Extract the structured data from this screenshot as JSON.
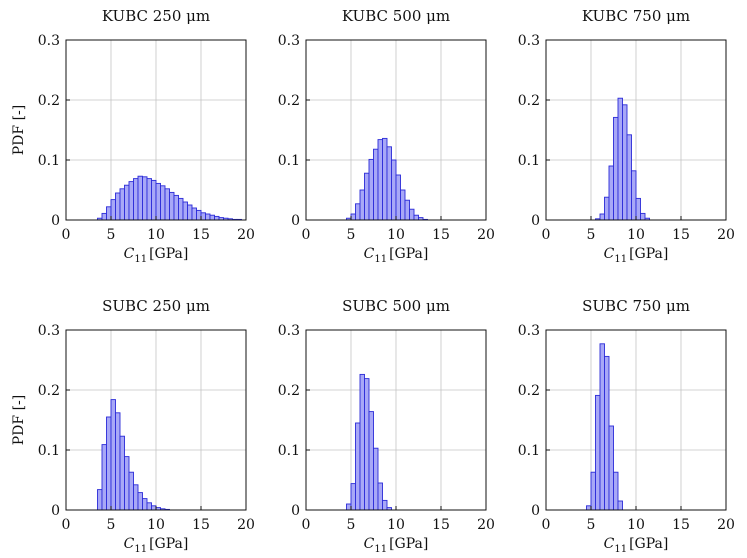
{
  "ylabel": "PDF [-]",
  "xlabel_main": "C",
  "xlabel_sub": "11",
  "xlabel_unit": "[GPa]",
  "chart_data": [
    {
      "type": "bar",
      "title": "KUBC 250 μm",
      "xlim": [
        0,
        20
      ],
      "ylim": [
        0,
        0.3
      ],
      "grid": true,
      "bin_width": 0.5,
      "x_ticks": [
        0,
        5,
        10,
        15,
        20
      ],
      "y_ticks": [
        0,
        0.1,
        0.2,
        0.3
      ],
      "x_tick_labels": [
        "0",
        "5",
        "10",
        "15",
        "20"
      ],
      "y_tick_labels": [
        "0",
        "0.1",
        "0.2",
        "0.3"
      ],
      "bins_start": [
        3.5,
        4,
        4.5,
        5,
        5.5,
        6,
        6.5,
        7,
        7.5,
        8,
        8.5,
        9,
        9.5,
        10,
        10.5,
        11,
        11.5,
        12,
        12.5,
        13,
        13.5,
        14,
        14.5,
        15,
        15.5,
        16,
        16.5,
        17,
        17.5,
        18,
        18.5,
        19
      ],
      "values": [
        0.003,
        0.011,
        0.022,
        0.034,
        0.045,
        0.052,
        0.058,
        0.064,
        0.069,
        0.073,
        0.072,
        0.069,
        0.066,
        0.061,
        0.057,
        0.052,
        0.046,
        0.041,
        0.036,
        0.03,
        0.025,
        0.02,
        0.016,
        0.012,
        0.01,
        0.008,
        0.006,
        0.004,
        0.003,
        0.002,
        0.001,
        0.001
      ]
    },
    {
      "type": "bar",
      "title": "KUBC 500 μm",
      "xlim": [
        0,
        20
      ],
      "ylim": [
        0,
        0.3
      ],
      "grid": true,
      "bin_width": 0.5,
      "x_ticks": [
        0,
        5,
        10,
        15,
        20
      ],
      "y_ticks": [
        0,
        0.1,
        0.2,
        0.3
      ],
      "x_tick_labels": [
        "0",
        "5",
        "10",
        "15",
        "20"
      ],
      "y_tick_labels": [
        "0",
        "0.1",
        "0.2",
        "0.3"
      ],
      "bins_start": [
        4.5,
        5,
        5.5,
        6,
        6.5,
        7,
        7.5,
        8,
        8.5,
        9,
        9.5,
        10,
        10.5,
        11,
        11.5,
        12,
        12.5,
        13
      ],
      "values": [
        0.003,
        0.01,
        0.027,
        0.05,
        0.078,
        0.101,
        0.118,
        0.134,
        0.136,
        0.122,
        0.1,
        0.075,
        0.05,
        0.033,
        0.018,
        0.008,
        0.004,
        0.001
      ]
    },
    {
      "type": "bar",
      "title": "KUBC 750 μm",
      "xlim": [
        0,
        20
      ],
      "ylim": [
        0,
        0.3
      ],
      "grid": true,
      "bin_width": 0.5,
      "x_ticks": [
        0,
        5,
        10,
        15,
        20
      ],
      "y_ticks": [
        0,
        0.1,
        0.2,
        0.3
      ],
      "x_tick_labels": [
        "0",
        "5",
        "10",
        "15",
        "20"
      ],
      "y_tick_labels": [
        "0",
        "0.1",
        "0.2",
        "0.3"
      ],
      "bins_start": [
        5.5,
        6,
        6.5,
        7,
        7.5,
        8,
        8.5,
        9,
        9.5,
        10,
        10.5,
        11
      ],
      "values": [
        0.002,
        0.01,
        0.038,
        0.09,
        0.171,
        0.203,
        0.192,
        0.142,
        0.082,
        0.036,
        0.011,
        0.003
      ]
    },
    {
      "type": "bar",
      "title": "SUBC 250 μm",
      "xlim": [
        0,
        20
      ],
      "ylim": [
        0,
        0.3
      ],
      "grid": true,
      "bin_width": 0.5,
      "x_ticks": [
        0,
        5,
        10,
        15,
        20
      ],
      "y_ticks": [
        0,
        0.1,
        0.2,
        0.3
      ],
      "x_tick_labels": [
        "0",
        "5",
        "10",
        "15",
        "20"
      ],
      "y_tick_labels": [
        "0",
        "0.1",
        "0.2",
        "0.3"
      ],
      "bins_start": [
        3.5,
        4,
        4.5,
        5,
        5.5,
        6,
        6.5,
        7,
        7.5,
        8,
        8.5,
        9,
        9.5,
        10,
        10.5,
        11
      ],
      "values": [
        0.034,
        0.109,
        0.155,
        0.184,
        0.162,
        0.123,
        0.089,
        0.063,
        0.042,
        0.029,
        0.019,
        0.012,
        0.007,
        0.004,
        0.002,
        0.001
      ]
    },
    {
      "type": "bar",
      "title": "SUBC 500 μm",
      "xlim": [
        0,
        20
      ],
      "ylim": [
        0,
        0.3
      ],
      "grid": true,
      "bin_width": 0.5,
      "x_ticks": [
        0,
        5,
        10,
        15,
        20
      ],
      "y_ticks": [
        0,
        0.1,
        0.2,
        0.3
      ],
      "x_tick_labels": [
        "0",
        "5",
        "10",
        "15",
        "20"
      ],
      "y_tick_labels": [
        "0",
        "0.1",
        "0.2",
        "0.3"
      ],
      "bins_start": [
        4.5,
        5,
        5.5,
        6,
        6.5,
        7,
        7.5,
        8,
        8.5,
        9
      ],
      "values": [
        0.01,
        0.044,
        0.145,
        0.226,
        0.219,
        0.164,
        0.103,
        0.045,
        0.016,
        0.004
      ]
    },
    {
      "type": "bar",
      "title": "SUBC 750 μm",
      "xlim": [
        0,
        20
      ],
      "ylim": [
        0,
        0.3
      ],
      "grid": true,
      "bin_width": 0.5,
      "x_ticks": [
        0,
        5,
        10,
        15,
        20
      ],
      "y_ticks": [
        0,
        0.1,
        0.2,
        0.3
      ],
      "x_tick_labels": [
        "0",
        "5",
        "10",
        "15",
        "20"
      ],
      "y_tick_labels": [
        "0",
        "0.1",
        "0.2",
        "0.3"
      ],
      "bins_start": [
        4.5,
        5,
        5.5,
        6,
        6.5,
        7,
        7.5,
        8
      ],
      "values": [
        0.007,
        0.063,
        0.191,
        0.277,
        0.256,
        0.14,
        0.063,
        0.015
      ]
    }
  ],
  "colors": {
    "bar_fill": "#a8a8f7",
    "bar_stroke": "#2b2bd8",
    "grid": "#c4c4c4",
    "axis": "#111111"
  }
}
